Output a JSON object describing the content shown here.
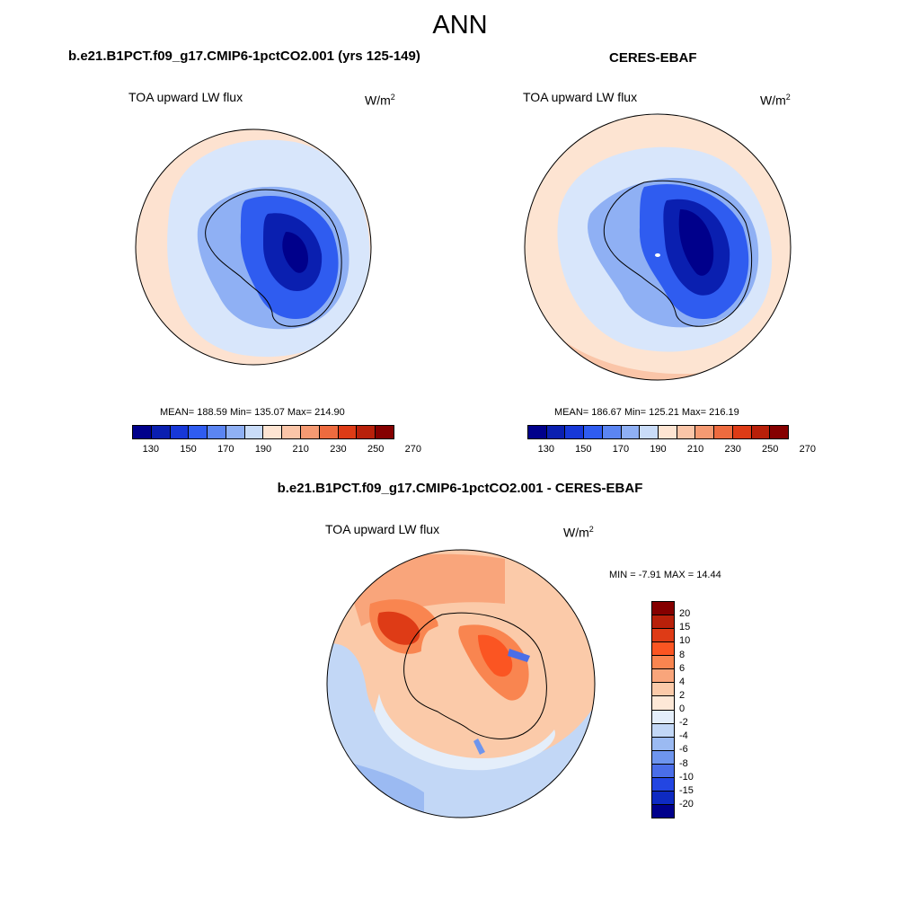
{
  "main_title": "ANN",
  "units": "W/m",
  "units_exp": "2",
  "panels": {
    "model": {
      "title": "b.e21.B1PCT.f09_g17.CMIP6-1pctCO2.001 (yrs 125-149)",
      "variable": "TOA upward LW flux",
      "stats": "MEAN= 188.59  Min= 135.07  Max= 214.90"
    },
    "obs": {
      "title": "CERES-EBAF",
      "variable": "TOA upward LW flux",
      "stats": "MEAN= 186.67  Min= 125.21  Max= 216.19"
    },
    "diff": {
      "title": "b.e21.B1PCT.f09_g17.CMIP6-1pctCO2.001 - CERES-EBAF",
      "variable": "TOA upward LW flux",
      "stats": "MIN =  -7.91 MAX =  14.44"
    }
  },
  "abs_colorbar": {
    "colors": [
      "#00008b",
      "#0a1fb0",
      "#1738d8",
      "#2f5cf0",
      "#5b85f2",
      "#8fb0f4",
      "#c9dcf8",
      "#fde4d2",
      "#fac5a8",
      "#f59a72",
      "#ee6b3f",
      "#de3b16",
      "#b8200a",
      "#850000"
    ],
    "labels": [
      "130",
      "150",
      "170",
      "190",
      "210",
      "230",
      "250",
      "270"
    ]
  },
  "diff_colorbar": {
    "colors": [
      "#850000",
      "#b8200a",
      "#de3b16",
      "#fb5522",
      "#f98550",
      "#f9a57b",
      "#fbcaa9",
      "#fde8d7",
      "#e4eefa",
      "#c2d7f6",
      "#9bbaf2",
      "#6e95ee",
      "#4a6ee8",
      "#2346e2",
      "#0e2ac2",
      "#00008b"
    ],
    "labels": [
      "20",
      "15",
      "10",
      "8",
      "6",
      "4",
      "2",
      "0",
      "-2",
      "-4",
      "-6",
      "-8",
      "-10",
      "-15",
      "-20"
    ]
  }
}
